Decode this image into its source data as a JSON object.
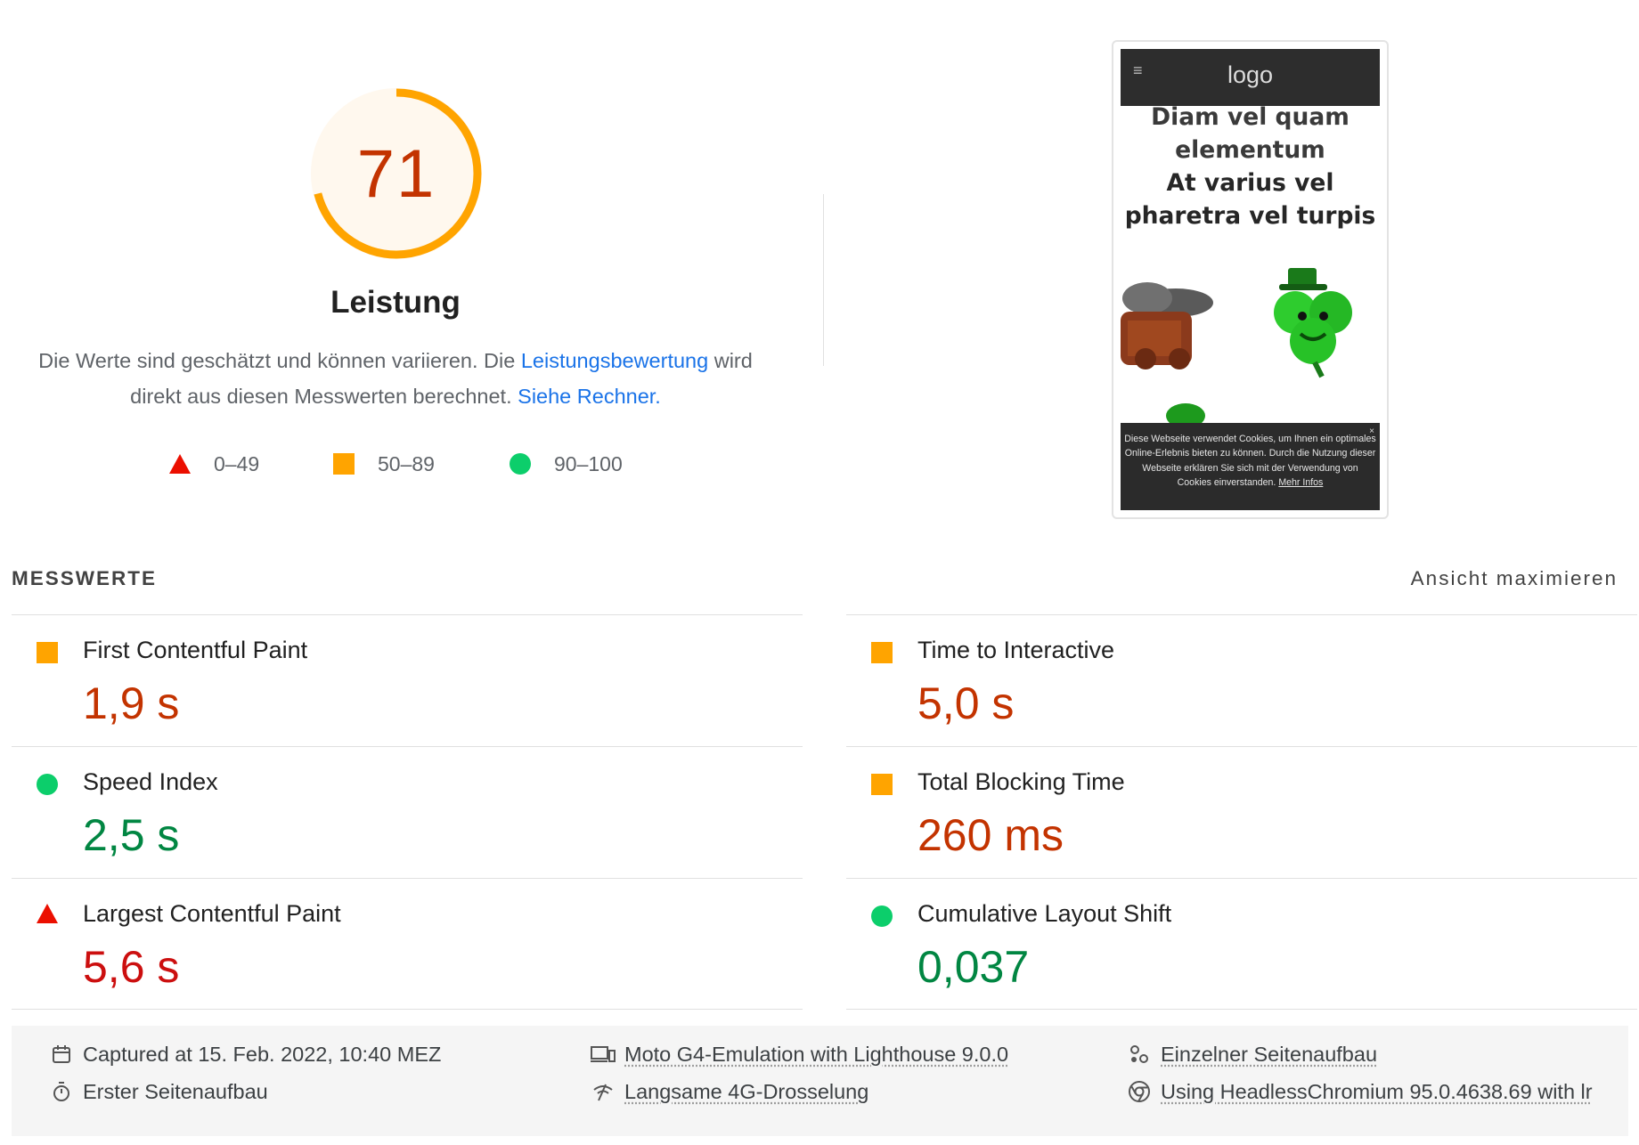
{
  "gauge": {
    "score": "71",
    "score_fraction": 0.71,
    "color": "#ffa400",
    "title": "Leistung",
    "desc_part1": "Die Werte sind geschätzt und können variieren. Die ",
    "desc_link1": "Leistungsbewertung",
    "desc_part2": " wird direkt aus diesen Messwerten berechnet. ",
    "desc_link2": "Siehe Rechner.",
    "legend": {
      "fail": "0–49",
      "average": "50–89",
      "pass": "90–100"
    }
  },
  "thumbnail": {
    "logo": "logo",
    "hero_line1": "Diam vel quam",
    "hero_line2": "elementum",
    "hero_line3": "At varius vel",
    "hero_line4": "pharetra vel turpis",
    "cookie_text": "Diese Webseite verwendet Cookies, um Ihnen ein optimales Online-Erlebnis bieten zu können. Durch die Nutzung dieser Webseite erklären Sie sich mit der Verwendung von Cookies einverstanden.",
    "cookie_link": "Mehr Infos",
    "cookie_close": "×"
  },
  "metrics": {
    "header": "MESSWERTE",
    "toggle": "Ansicht maximieren",
    "items": [
      {
        "title": "First Contentful Paint",
        "value": "1,9 s",
        "rating": "average"
      },
      {
        "title": "Time to Interactive",
        "value": "5,0 s",
        "rating": "average"
      },
      {
        "title": "Speed Index",
        "value": "2,5 s",
        "rating": "pass"
      },
      {
        "title": "Total Blocking Time",
        "value": "260 ms",
        "rating": "average"
      },
      {
        "title": "Largest Contentful Paint",
        "value": "5,6 s",
        "rating": "fail"
      },
      {
        "title": "Cumulative Layout Shift",
        "value": "0,037",
        "rating": "pass"
      }
    ]
  },
  "footer": {
    "captured": "Captured at 15. Feb. 2022, 10:40 MEZ",
    "device": "Moto G4-Emulation with Lighthouse 9.0.0",
    "load_type": "Einzelner Seitenaufbau",
    "first_load": "Erster Seitenaufbau",
    "throttling": "Langsame 4G-Drosselung",
    "browser": "Using HeadlessChromium 95.0.4638.69 with lr"
  },
  "colors": {
    "fail": "#eb0f00",
    "average": "#ffa400",
    "pass": "#0cce6b",
    "link": "#1a73e8"
  }
}
